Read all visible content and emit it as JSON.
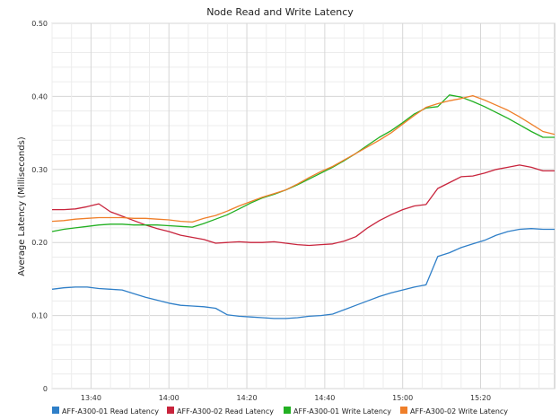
{
  "chart_data": {
    "type": "line",
    "title": "Node Read and Write Latency",
    "xlabel": "",
    "ylabel": "Average Latency (Milliseconds)",
    "ylim": [
      0,
      0.5
    ],
    "y_ticks": [
      "0",
      "0.10",
      "0.20",
      "0.30",
      "0.40",
      "0.50"
    ],
    "x_ticks": [
      "13:40",
      "14:00",
      "14:20",
      "14:40",
      "15:00",
      "15:20"
    ],
    "grid": true,
    "legend_position": "bottom",
    "x": [
      "13:30",
      "13:33",
      "13:36",
      "13:39",
      "13:42",
      "13:45",
      "13:48",
      "13:51",
      "13:54",
      "13:57",
      "14:00",
      "14:03",
      "14:06",
      "14:09",
      "14:12",
      "14:15",
      "14:18",
      "14:21",
      "14:24",
      "14:27",
      "14:30",
      "14:33",
      "14:36",
      "14:39",
      "14:42",
      "14:45",
      "14:48",
      "14:51",
      "14:54",
      "14:57",
      "15:00",
      "15:03",
      "15:06",
      "15:09",
      "15:12",
      "15:15",
      "15:18",
      "15:21",
      "15:24",
      "15:27",
      "15:30",
      "15:33",
      "15:36",
      "15:39"
    ],
    "series": [
      {
        "name": "AFF-A300-01 Read Latency",
        "color": "#2f7fc8",
        "values": [
          0.136,
          0.138,
          0.139,
          0.139,
          0.137,
          0.136,
          0.135,
          0.13,
          0.125,
          0.121,
          0.117,
          0.114,
          0.113,
          0.112,
          0.11,
          0.101,
          0.099,
          0.098,
          0.097,
          0.096,
          0.096,
          0.097,
          0.099,
          0.1,
          0.102,
          0.108,
          0.114,
          0.12,
          0.126,
          0.131,
          0.135,
          0.139,
          0.142,
          0.181,
          0.186,
          0.193,
          0.198,
          0.203,
          0.21,
          0.215,
          0.218,
          0.219,
          0.218,
          0.218
        ]
      },
      {
        "name": "AFF-A300-02 Read Latency",
        "color": "#c8243c",
        "values": [
          0.245,
          0.245,
          0.246,
          0.249,
          0.253,
          0.242,
          0.236,
          0.23,
          0.224,
          0.219,
          0.215,
          0.21,
          0.207,
          0.204,
          0.199,
          0.2,
          0.201,
          0.2,
          0.2,
          0.201,
          0.199,
          0.197,
          0.196,
          0.197,
          0.198,
          0.202,
          0.208,
          0.22,
          0.23,
          0.238,
          0.245,
          0.25,
          0.252,
          0.274,
          0.282,
          0.29,
          0.291,
          0.295,
          0.3,
          0.303,
          0.306,
          0.303,
          0.298,
          0.298
        ]
      },
      {
        "name": "AFF-A300-01 Write Latency",
        "color": "#22b022",
        "values": [
          0.215,
          0.218,
          0.22,
          0.222,
          0.224,
          0.225,
          0.225,
          0.224,
          0.224,
          0.224,
          0.223,
          0.222,
          0.221,
          0.226,
          0.232,
          0.238,
          0.246,
          0.254,
          0.261,
          0.266,
          0.272,
          0.279,
          0.287,
          0.295,
          0.303,
          0.312,
          0.322,
          0.333,
          0.344,
          0.353,
          0.364,
          0.376,
          0.384,
          0.386,
          0.402,
          0.399,
          0.393,
          0.386,
          0.378,
          0.37,
          0.361,
          0.352,
          0.344,
          0.344
        ]
      },
      {
        "name": "AFF-A300-02 Write Latency",
        "color": "#ef7f2a",
        "values": [
          0.229,
          0.23,
          0.232,
          0.233,
          0.234,
          0.234,
          0.234,
          0.233,
          0.233,
          0.232,
          0.231,
          0.229,
          0.228,
          0.233,
          0.237,
          0.243,
          0.25,
          0.256,
          0.262,
          0.267,
          0.272,
          0.28,
          0.289,
          0.297,
          0.304,
          0.313,
          0.322,
          0.331,
          0.34,
          0.35,
          0.362,
          0.374,
          0.385,
          0.39,
          0.394,
          0.397,
          0.401,
          0.395,
          0.388,
          0.381,
          0.372,
          0.362,
          0.352,
          0.348
        ]
      }
    ]
  }
}
